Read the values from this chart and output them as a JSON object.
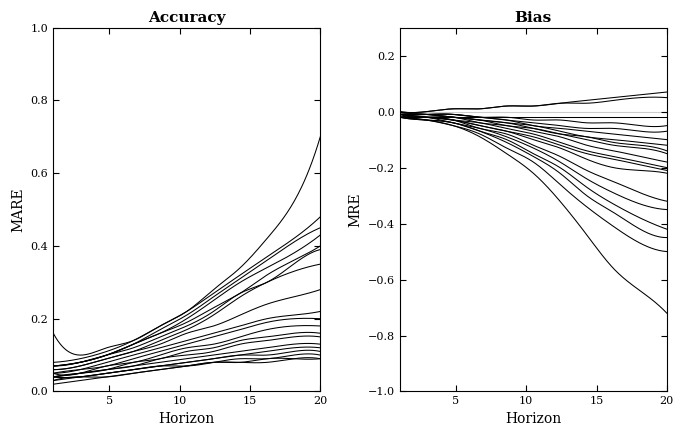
{
  "title_left": "Accuracy",
  "title_right": "Bias",
  "xlabel": "Horizon",
  "ylabel_left": "MARE",
  "ylabel_right": "MRE",
  "x_ticks": [
    5,
    10,
    15,
    20
  ],
  "ylim_left": [
    0.0,
    1.0
  ],
  "ylim_right": [
    -1.0,
    0.3
  ],
  "yticks_left": [
    0.0,
    0.2,
    0.4,
    0.6,
    0.8,
    1.0
  ],
  "yticks_right": [
    -1.0,
    -0.8,
    -0.6,
    -0.4,
    -0.2,
    0.0,
    0.2
  ],
  "line_color": "#000000",
  "background_color": "#ffffff",
  "accuracy_lines": [
    [
      0.16,
      0.1,
      0.12,
      0.14,
      0.18,
      0.22,
      0.28,
      0.34,
      0.42,
      0.52,
      0.7
    ],
    [
      0.08,
      0.09,
      0.11,
      0.14,
      0.18,
      0.22,
      0.27,
      0.32,
      0.37,
      0.42,
      0.48
    ],
    [
      0.07,
      0.08,
      0.1,
      0.13,
      0.17,
      0.21,
      0.26,
      0.31,
      0.36,
      0.41,
      0.45
    ],
    [
      0.07,
      0.08,
      0.1,
      0.13,
      0.16,
      0.2,
      0.25,
      0.3,
      0.34,
      0.38,
      0.43
    ],
    [
      0.07,
      0.08,
      0.1,
      0.13,
      0.16,
      0.19,
      0.23,
      0.27,
      0.32,
      0.36,
      0.4
    ],
    [
      0.07,
      0.08,
      0.1,
      0.12,
      0.15,
      0.18,
      0.22,
      0.27,
      0.3,
      0.35,
      0.39
    ],
    [
      0.06,
      0.07,
      0.09,
      0.11,
      0.14,
      0.17,
      0.21,
      0.26,
      0.3,
      0.33,
      0.35
    ],
    [
      0.06,
      0.07,
      0.09,
      0.11,
      0.13,
      0.16,
      0.18,
      0.21,
      0.24,
      0.26,
      0.28
    ],
    [
      0.05,
      0.06,
      0.08,
      0.1,
      0.12,
      0.14,
      0.16,
      0.18,
      0.2,
      0.21,
      0.22
    ],
    [
      0.05,
      0.06,
      0.07,
      0.09,
      0.11,
      0.13,
      0.15,
      0.17,
      0.19,
      0.2,
      0.2
    ],
    [
      0.05,
      0.05,
      0.07,
      0.08,
      0.1,
      0.12,
      0.13,
      0.15,
      0.17,
      0.18,
      0.18
    ],
    [
      0.04,
      0.05,
      0.06,
      0.08,
      0.09,
      0.11,
      0.12,
      0.14,
      0.15,
      0.16,
      0.16
    ],
    [
      0.04,
      0.05,
      0.06,
      0.07,
      0.09,
      0.1,
      0.11,
      0.13,
      0.14,
      0.15,
      0.15
    ],
    [
      0.04,
      0.05,
      0.06,
      0.07,
      0.08,
      0.09,
      0.1,
      0.11,
      0.12,
      0.13,
      0.13
    ],
    [
      0.04,
      0.04,
      0.05,
      0.06,
      0.07,
      0.08,
      0.09,
      0.1,
      0.11,
      0.12,
      0.12
    ],
    [
      0.04,
      0.04,
      0.05,
      0.06,
      0.07,
      0.08,
      0.09,
      0.1,
      0.1,
      0.11,
      0.11
    ],
    [
      0.03,
      0.04,
      0.05,
      0.06,
      0.07,
      0.07,
      0.08,
      0.09,
      0.09,
      0.1,
      0.1
    ],
    [
      0.03,
      0.04,
      0.04,
      0.05,
      0.06,
      0.07,
      0.08,
      0.08,
      0.09,
      0.09,
      0.09
    ],
    [
      0.02,
      0.03,
      0.04,
      0.05,
      0.06,
      0.07,
      0.08,
      0.08,
      0.08,
      0.09,
      0.09
    ]
  ],
  "bias_lines": [
    [
      -0.02,
      -0.03,
      -0.05,
      -0.09,
      -0.15,
      -0.22,
      -0.32,
      -0.44,
      -0.56,
      -0.64,
      -0.72
    ],
    [
      -0.02,
      -0.03,
      -0.05,
      -0.08,
      -0.13,
      -0.18,
      -0.26,
      -0.34,
      -0.41,
      -0.47,
      -0.5
    ],
    [
      -0.02,
      -0.03,
      -0.04,
      -0.07,
      -0.11,
      -0.16,
      -0.22,
      -0.3,
      -0.36,
      -0.42,
      -0.45
    ],
    [
      -0.02,
      -0.03,
      -0.04,
      -0.07,
      -0.1,
      -0.15,
      -0.2,
      -0.27,
      -0.33,
      -0.38,
      -0.42
    ],
    [
      -0.02,
      -0.02,
      -0.04,
      -0.06,
      -0.09,
      -0.13,
      -0.18,
      -0.24,
      -0.29,
      -0.33,
      -0.35
    ],
    [
      -0.02,
      -0.02,
      -0.03,
      -0.06,
      -0.08,
      -0.12,
      -0.16,
      -0.21,
      -0.25,
      -0.29,
      -0.32
    ],
    [
      -0.02,
      -0.02,
      -0.03,
      -0.05,
      -0.07,
      -0.1,
      -0.13,
      -0.17,
      -0.2,
      -0.21,
      -0.22
    ],
    [
      -0.01,
      -0.02,
      -0.03,
      -0.05,
      -0.07,
      -0.09,
      -0.12,
      -0.15,
      -0.17,
      -0.19,
      -0.21
    ],
    [
      -0.01,
      -0.02,
      -0.03,
      -0.04,
      -0.06,
      -0.08,
      -0.11,
      -0.14,
      -0.16,
      -0.18,
      -0.2
    ],
    [
      -0.01,
      -0.02,
      -0.02,
      -0.04,
      -0.05,
      -0.07,
      -0.09,
      -0.12,
      -0.14,
      -0.16,
      -0.18
    ],
    [
      -0.01,
      -0.01,
      -0.02,
      -0.03,
      -0.05,
      -0.06,
      -0.08,
      -0.1,
      -0.12,
      -0.13,
      -0.15
    ],
    [
      -0.01,
      -0.01,
      -0.02,
      -0.03,
      -0.04,
      -0.06,
      -0.08,
      -0.09,
      -0.11,
      -0.12,
      -0.14
    ],
    [
      -0.01,
      -0.01,
      -0.02,
      -0.03,
      -0.04,
      -0.05,
      -0.07,
      -0.09,
      -0.1,
      -0.11,
      -0.12
    ],
    [
      -0.01,
      -0.01,
      -0.01,
      -0.02,
      -0.03,
      -0.05,
      -0.06,
      -0.07,
      -0.08,
      -0.09,
      -0.1
    ],
    [
      -0.01,
      -0.01,
      -0.01,
      -0.02,
      -0.03,
      -0.04,
      -0.05,
      -0.06,
      -0.06,
      -0.07,
      -0.07
    ],
    [
      -0.01,
      -0.01,
      -0.01,
      -0.02,
      -0.02,
      -0.03,
      -0.03,
      -0.04,
      -0.04,
      -0.05,
      -0.05
    ],
    [
      0.0,
      0.0,
      0.01,
      0.01,
      0.02,
      0.02,
      0.03,
      0.04,
      0.05,
      0.06,
      0.07
    ],
    [
      0.0,
      0.0,
      0.01,
      0.01,
      0.02,
      0.02,
      0.03,
      0.03,
      0.04,
      0.05,
      0.05
    ],
    [
      -0.02,
      -0.02,
      -0.02,
      -0.02,
      -0.02,
      -0.02,
      -0.02,
      -0.02,
      -0.02,
      -0.02,
      -0.02
    ]
  ]
}
